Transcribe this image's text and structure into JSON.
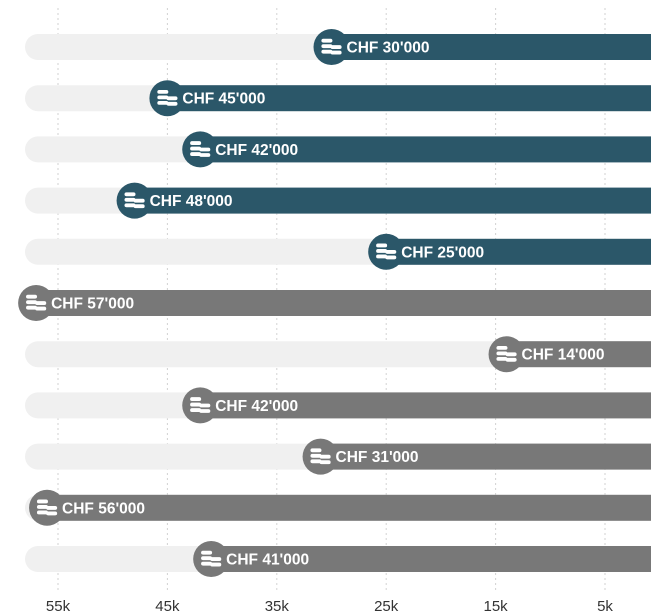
{
  "chart_data": {
    "type": "bar",
    "orientation": "horizontal",
    "x_reversed": true,
    "xlim": [
      0,
      60000
    ],
    "currency": "CHF",
    "values": [
      30000,
      45000,
      42000,
      48000,
      25000,
      57000,
      14000,
      42000,
      31000,
      56000,
      41000
    ],
    "labels": [
      "CHF 30'000",
      "CHF 45'000",
      "CHF 42'000",
      "CHF 48'000",
      "CHF 25'000",
      "CHF 57'000",
      "CHF 14'000",
      "CHF 42'000",
      "CHF 31'000",
      "CHF 56'000",
      "CHF 41'000"
    ],
    "bar_colors": [
      "#2b5769",
      "#2b5769",
      "#2b5769",
      "#2b5769",
      "#2b5769",
      "#787878",
      "#787878",
      "#787878",
      "#787878",
      "#787878",
      "#787878"
    ],
    "track_color": "#f0f0f0",
    "marker_icon": "coins-icon",
    "x_ticks": [
      55000,
      45000,
      35000,
      25000,
      15000,
      5000
    ],
    "x_tick_labels": [
      "55k",
      "45k",
      "35k",
      "25k",
      "15k",
      "5k"
    ],
    "grid": true
  }
}
